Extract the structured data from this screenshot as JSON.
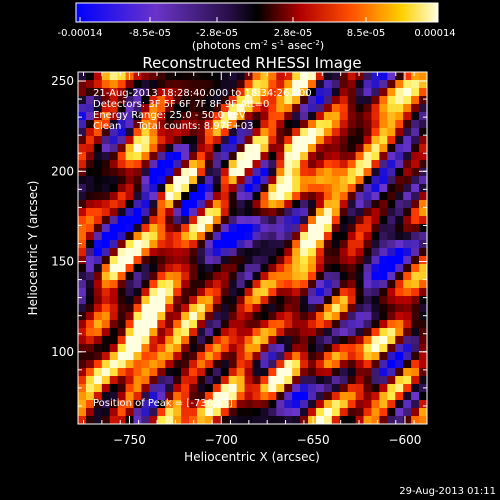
{
  "chart_data": {
    "type": "heatmap",
    "title": "Reconstructed RHESSI Image",
    "xlabel": "Heliocentric X (arcsec)",
    "ylabel": "Heliocentric Y (arcsec)",
    "xlim": [
      -778,
      -588
    ],
    "ylim": [
      60,
      255
    ],
    "xticks": [
      -750,
      -700,
      -650,
      -600
    ],
    "yticks": [
      100,
      150,
      200,
      250
    ],
    "colorbar": {
      "min": -0.00014,
      "max": 0.00014,
      "ticks": [
        "-0.00014",
        "-8.5e-05",
        "-2.8e-05",
        "2.8e-05",
        "8.5e-05",
        "0.00014"
      ],
      "unit_main": "(photons cm",
      "unit_sup1": "-2",
      "unit_s": " s",
      "unit_sup2": "-1",
      "unit_asec": " asec",
      "unit_sup3": "-2",
      "unit_close": ")"
    },
    "annotations": [
      "21-Aug-2013 18:28:40.000 to 18:34:26.000",
      "Detectors: 3F 5F 6F 7F 8F 9F Att=0",
      "Energy Range: 25.0 - 50.0 keV",
      "Clean     Total counts: 8.97E+03",
      "Position of Peak = [-736,65]"
    ],
    "footer": "29-Aug-2013 01:11",
    "colors": {
      "cmap": [
        "#0000ff",
        "#3b1fb0",
        "#6a34c9",
        "#2a0f4a",
        "#000000",
        "#5a0000",
        "#b20000",
        "#ff3c00",
        "#ff9a00",
        "#ffe840",
        "#ffffe0"
      ]
    }
  }
}
